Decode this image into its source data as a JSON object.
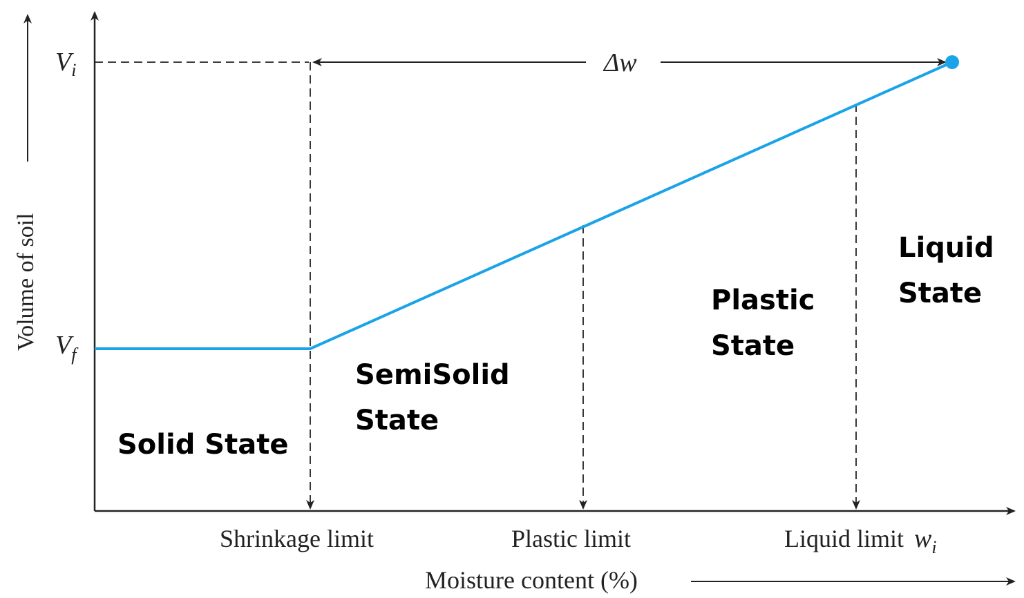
{
  "axes": {
    "y_label": "Volume of soil",
    "x_label": "Moisture content (%)",
    "y_tick_vi": "V",
    "y_tick_vi_sub": "i",
    "y_tick_vf": "V",
    "y_tick_vf_sub": "f"
  },
  "limits": {
    "shrinkage": "Shrinkage limit",
    "plastic": "Plastic limit",
    "liquid": "Liquid limit",
    "liquid_symbol": "w",
    "liquid_symbol_sub": "i"
  },
  "delta_label": "Δw",
  "states": {
    "solid": "Solid State",
    "semisolid_line1": "SemiSolid",
    "semisolid_line2": "State",
    "plastic_line1": "Plastic",
    "plastic_line2": "State",
    "liquid_line1": "Liquid",
    "liquid_line2": "State"
  },
  "colors": {
    "curve": "#1aa3e8",
    "axes": "#222222"
  }
}
